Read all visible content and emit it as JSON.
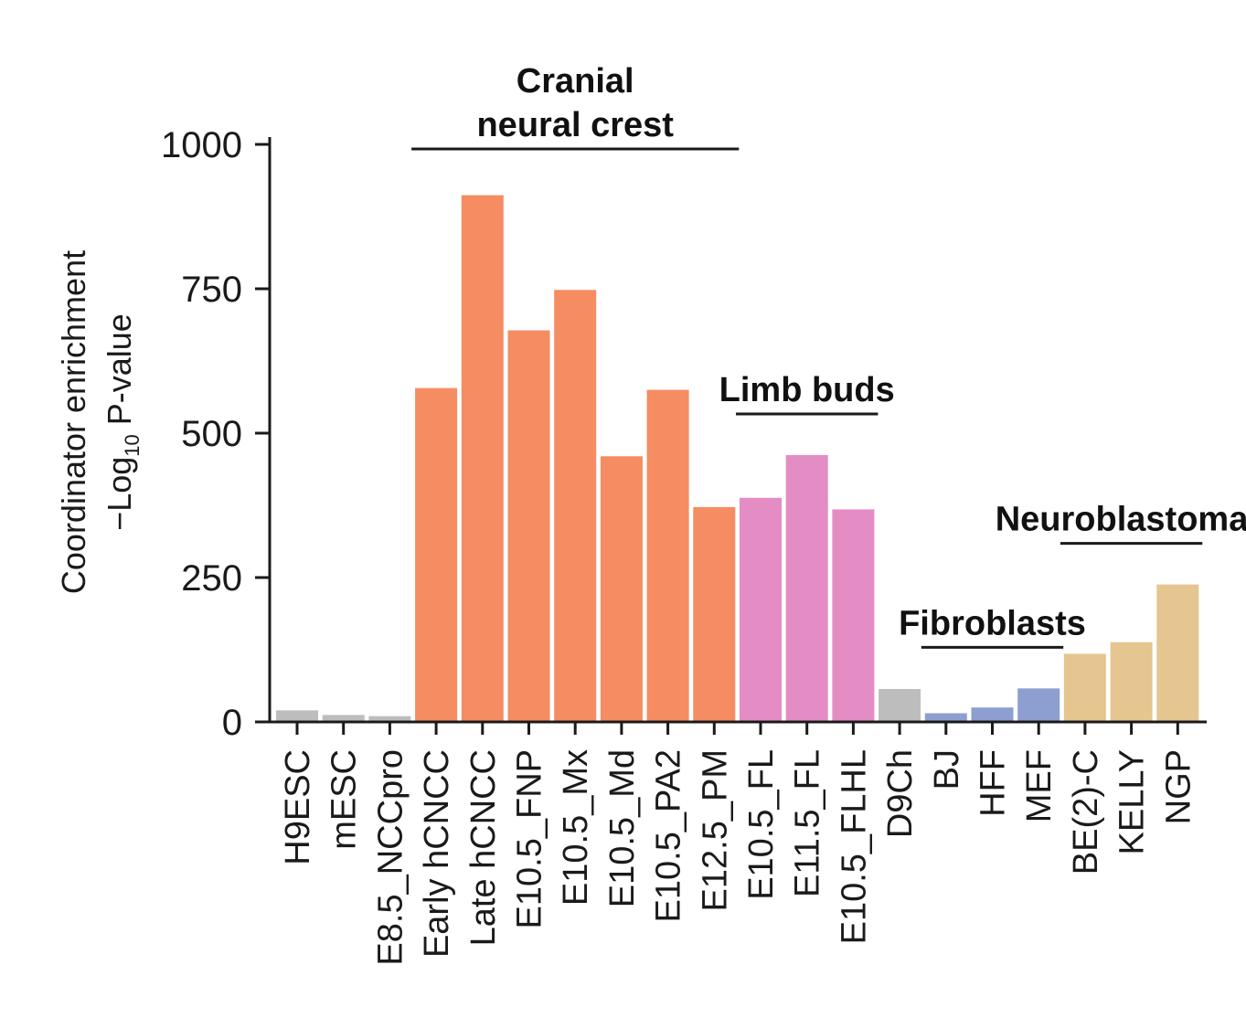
{
  "chart_data": {
    "type": "bar",
    "ylabel_line1": "Coordinator enrichment",
    "ylabel_line2_prefix": "−Log",
    "ylabel_line2_sub": "10",
    "ylabel_line2_suffix": " P-value",
    "ylim": [
      0,
      1000
    ],
    "yticks": [
      0,
      250,
      500,
      750,
      1000
    ],
    "grid": false,
    "categories": [
      "H9ESC",
      "mESC",
      "E8.5_NCCpro",
      "Early hCNCC",
      "Late hCNCC",
      "E10.5_FNP",
      "E10.5_Mx",
      "E10.5_Md",
      "E10.5_PA2",
      "E12.5_PM",
      "E10.5_FL",
      "E11.5_FL",
      "E10.5_FLHL",
      "D9Ch",
      "BJ",
      "HFF",
      "MEF",
      "BE(2)-C",
      "KELLY",
      "NGP"
    ],
    "values": [
      20,
      12,
      10,
      578,
      912,
      678,
      748,
      460,
      575,
      372,
      388,
      462,
      368,
      57,
      15,
      25,
      58,
      118,
      138,
      238
    ],
    "colors": [
      "#bdbdbd",
      "#bdbdbd",
      "#bdbdbd",
      "#f58c62",
      "#f58c62",
      "#f58c62",
      "#f58c62",
      "#f58c62",
      "#f58c62",
      "#f58c62",
      "#e48cc4",
      "#e48cc4",
      "#e48cc4",
      "#bdbdbd",
      "#8c9fd0",
      "#8c9fd0",
      "#8c9fd0",
      "#e5c690",
      "#e5c690",
      "#e5c690"
    ],
    "groups": [
      {
        "lines": [
          "Cranial",
          "neural crest"
        ],
        "start": 3,
        "end": 9
      },
      {
        "lines": [
          "Limb buds"
        ],
        "start": 10,
        "end": 12
      },
      {
        "lines": [
          "Fibroblasts"
        ],
        "start": 14,
        "end": 16
      },
      {
        "lines": [
          "Neuroblastomas"
        ],
        "start": 17,
        "end": 19
      }
    ]
  }
}
